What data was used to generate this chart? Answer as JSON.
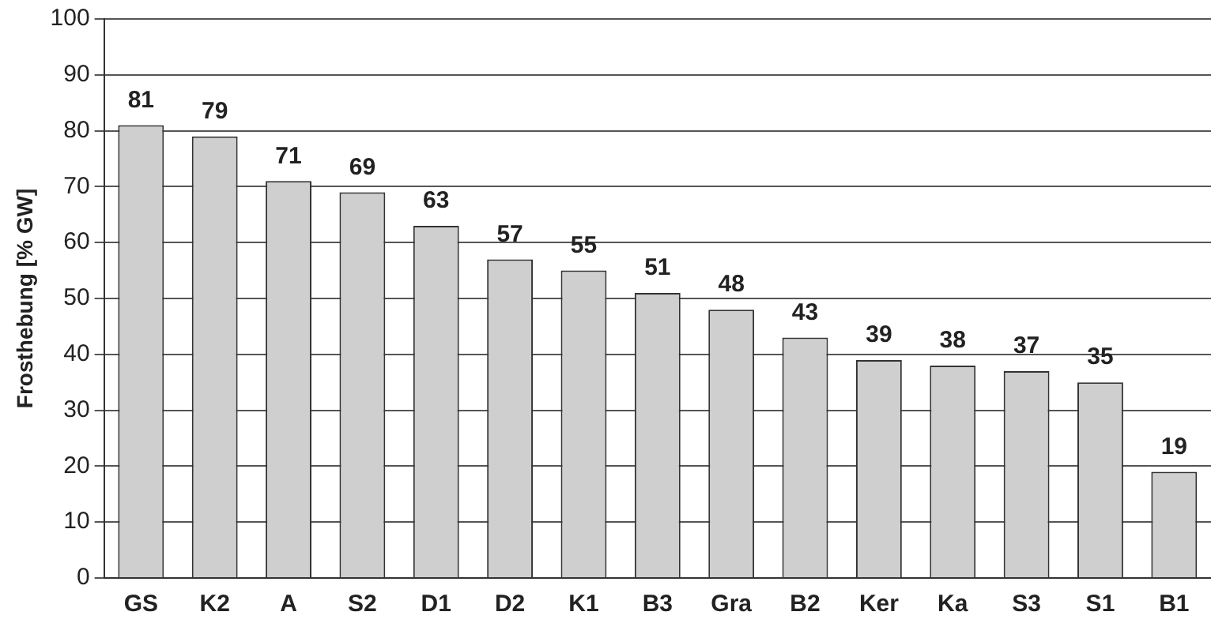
{
  "chart_data": {
    "type": "bar",
    "ylabel": "Frosthebung [% GW]",
    "categories": [
      "GS",
      "K2",
      "A",
      "S2",
      "D1",
      "D2",
      "K1",
      "B3",
      "Gra",
      "B2",
      "Ker",
      "Ka",
      "S3",
      "S1",
      "B1"
    ],
    "values": [
      81,
      79,
      71,
      69,
      63,
      57,
      55,
      51,
      48,
      43,
      39,
      38,
      37,
      35,
      19
    ],
    "color": "#cfcfcf",
    "ylim": [
      0,
      100
    ],
    "yticks": [
      0,
      10,
      20,
      30,
      40,
      50,
      60,
      70,
      80,
      90,
      100
    ],
    "grid": "y",
    "legend": false,
    "data_labels": true
  }
}
